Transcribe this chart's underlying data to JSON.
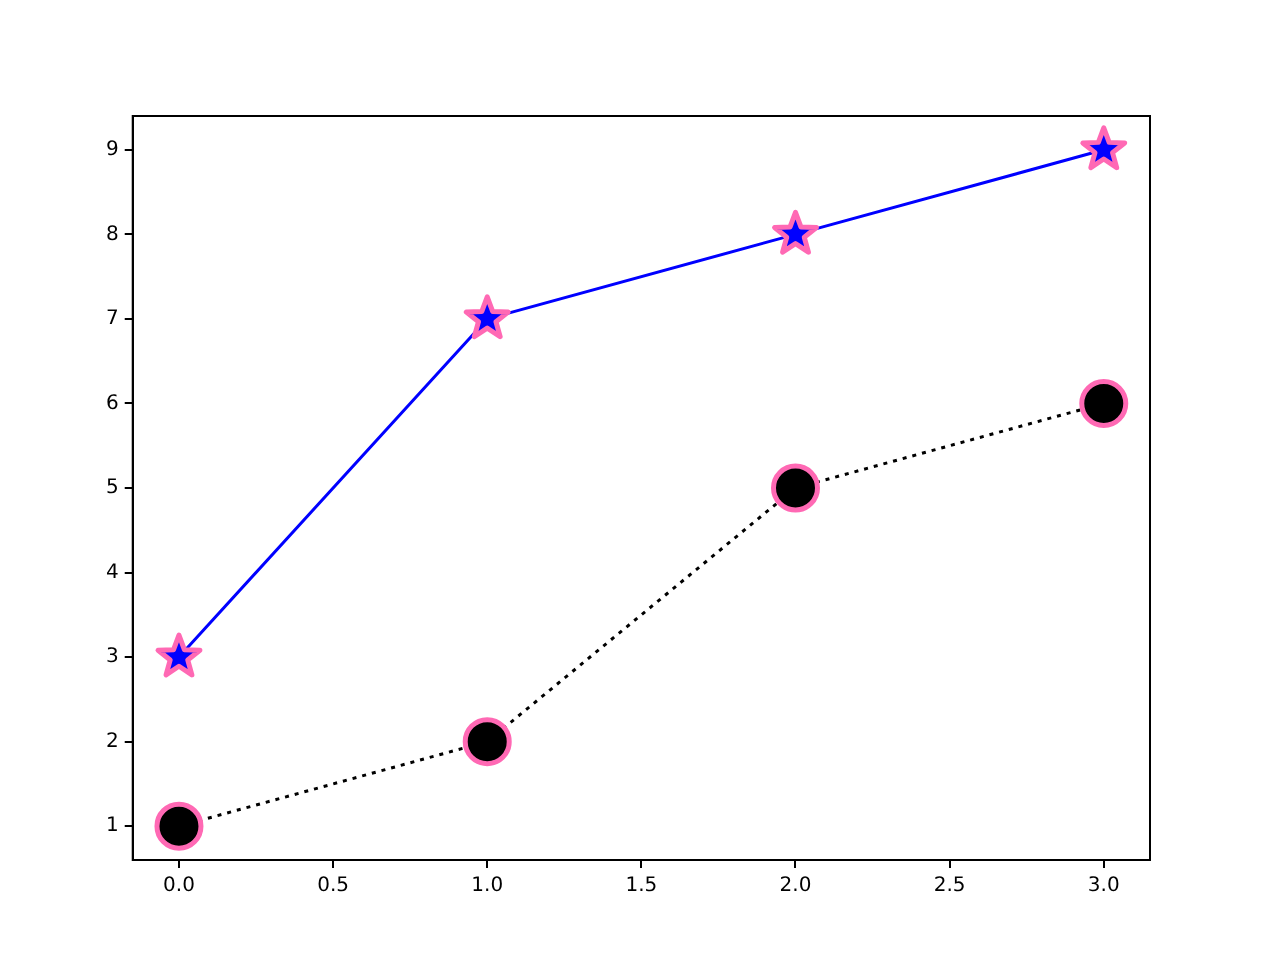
{
  "chart_data": {
    "type": "line",
    "x": [
      0,
      1,
      2,
      3
    ],
    "series": [
      {
        "color": "#0000ff",
        "values": [
          3,
          7,
          8,
          9
        ],
        "marker": "star",
        "line_style": "solid"
      },
      {
        "color": "#000000",
        "values": [
          1,
          2,
          5,
          6
        ],
        "marker": "circle",
        "line_style": "dotted"
      }
    ],
    "xlim": [
      -0.15,
      3.15
    ],
    "xticks": [
      {
        "value": 0,
        "label": "0.0"
      },
      {
        "value": 0.5,
        "label": "0.5"
      },
      {
        "value": 1,
        "label": "1.0"
      },
      {
        "value": 1.5,
        "label": "1.5"
      },
      {
        "value": 2,
        "label": "2.0"
      },
      {
        "value": 2.5,
        "label": "2.5"
      },
      {
        "value": 3,
        "label": "3.0"
      }
    ],
    "ylim": [
      0.6,
      9.4
    ],
    "yticks": [
      1,
      2,
      3,
      4,
      5,
      6,
      7,
      8,
      9
    ],
    "grid": false,
    "legend": false
  }
}
